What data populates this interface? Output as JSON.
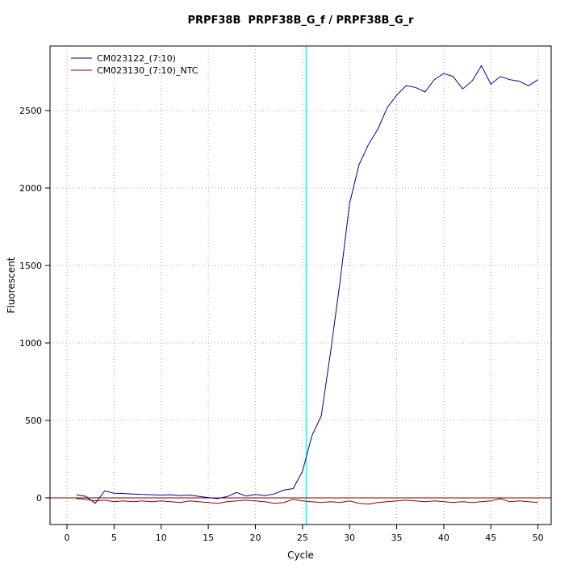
{
  "chart_data": {
    "type": "line",
    "title": "PRPF38B  PRPF38B_G_f / PRPF38B_G_r",
    "xlabel": "Cycle",
    "ylabel": "Fluorescent",
    "xlim": [
      -1.8,
      51.4
    ],
    "ylim": [
      -172,
      2917
    ],
    "xticks": [
      0,
      5,
      10,
      15,
      20,
      25,
      30,
      35,
      40,
      45,
      50
    ],
    "yticks": [
      0,
      500,
      1000,
      1500,
      2000,
      2500
    ],
    "grid": true,
    "grid_color": "#aaaaaa",
    "legend_position": "top-left",
    "threshold_line": {
      "y": 0,
      "color": "#7f0000"
    },
    "ct_line": {
      "x": 25.4,
      "color": "#00ffff"
    },
    "x": [
      1,
      2,
      3,
      4,
      5,
      6,
      7,
      8,
      9,
      10,
      11,
      12,
      13,
      14,
      15,
      16,
      17,
      18,
      19,
      20,
      21,
      22,
      23,
      24,
      25,
      26,
      27,
      28,
      29,
      30,
      31,
      32,
      33,
      34,
      35,
      36,
      37,
      38,
      39,
      40,
      41,
      42,
      43,
      44,
      45,
      46,
      47,
      48,
      49,
      50
    ],
    "series": [
      {
        "name": "CM023122_(7:10)",
        "color": "#00008b",
        "values": [
          20,
          10,
          -35,
          45,
          30,
          28,
          25,
          22,
          20,
          18,
          20,
          15,
          18,
          10,
          2,
          -5,
          8,
          35,
          12,
          22,
          15,
          25,
          50,
          60,
          170,
          400,
          530,
          950,
          1400,
          1900,
          2150,
          2280,
          2380,
          2520,
          2600,
          2660,
          2650,
          2620,
          2700,
          2740,
          2720,
          2640,
          2690,
          2790,
          2670,
          2720,
          2700,
          2690,
          2660,
          2700
        ]
      },
      {
        "name": "CM023130_(7:10)_NTC",
        "color": "#8b0000",
        "values": [
          -5,
          -10,
          -20,
          -15,
          -25,
          -20,
          -25,
          -20,
          -25,
          -20,
          -25,
          -30,
          -20,
          -25,
          -30,
          -35,
          -25,
          -20,
          -15,
          -20,
          -25,
          -35,
          -30,
          -10,
          -20,
          -25,
          -30,
          -25,
          -30,
          -20,
          -35,
          -40,
          -30,
          -25,
          -20,
          -15,
          -20,
          -25,
          -20,
          -25,
          -30,
          -25,
          -30,
          -25,
          -20,
          -5,
          -25,
          -20,
          -25,
          -30
        ]
      }
    ]
  }
}
